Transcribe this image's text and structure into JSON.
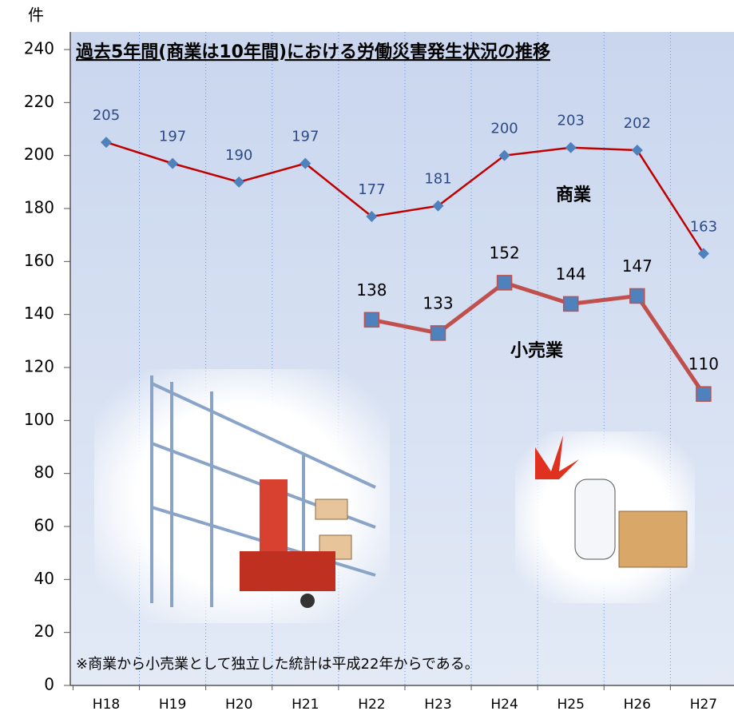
{
  "chart_data": {
    "type": "line",
    "title": "過去5年間(商業は10年間)における労働災害発生状況の推移",
    "y_unit": "件",
    "note": "※商業から小売業として独立した統計は平成22年からである。",
    "categories": [
      "H18",
      "H19",
      "H20",
      "H21",
      "H22",
      "H23",
      "H24",
      "H25",
      "H26",
      "H27"
    ],
    "series": [
      {
        "name": "商業",
        "color": "#c00000",
        "marker_color": "#4f81bd",
        "label_color": "#2e4a86",
        "values": [
          205,
          197,
          190,
          197,
          177,
          181,
          200,
          203,
          202,
          163
        ]
      },
      {
        "name": "小売業",
        "color": "#c0504d",
        "marker_color": "#4f81bd",
        "label_color": "#000000",
        "values": [
          null,
          null,
          null,
          null,
          138,
          133,
          152,
          144,
          147,
          110
        ]
      }
    ],
    "ylim": [
      0,
      240
    ],
    "yticks": [
      0,
      20,
      40,
      60,
      80,
      100,
      120,
      140,
      160,
      180,
      200,
      220,
      240
    ]
  }
}
